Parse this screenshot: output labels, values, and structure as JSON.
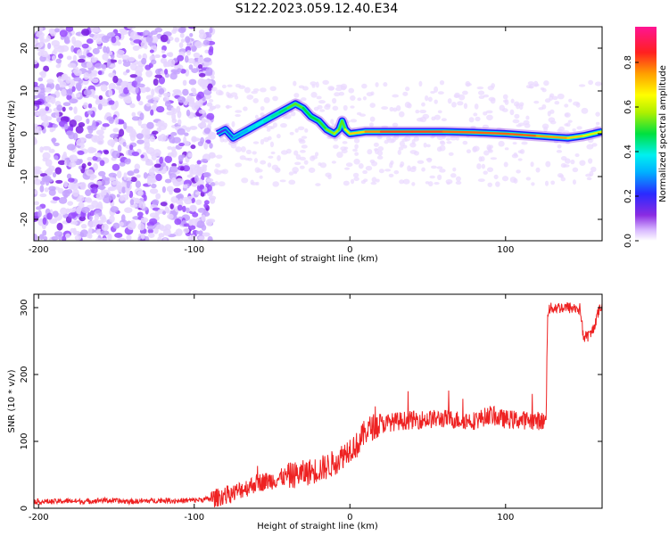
{
  "title": "S122.2023.059.12.40.E34",
  "colors": {
    "snr_line": "#ee2222",
    "spectrogram_scatter": "#7a1fe0",
    "spectrogram_ridge": "#ff2020",
    "background": "#ffffff"
  },
  "chart_data": [
    {
      "type": "heatmap",
      "xlabel": "Height of straight line (km)",
      "ylabel": "Frequency (Hz)",
      "xlim": [
        -203,
        162
      ],
      "ylim": [
        -25,
        25
      ],
      "xticks": [
        -200,
        -100,
        0,
        100
      ],
      "xtick_labels": [
        "-200",
        "-100",
        "0",
        "100"
      ],
      "yticks": [
        -20,
        -10,
        0,
        10,
        20
      ],
      "ytick_labels": [
        "-20",
        "-10",
        "0",
        "10",
        "20"
      ],
      "grid": false,
      "colorbar": {
        "label": "Normalized spectral amplitude",
        "range": [
          0,
          0.96
        ],
        "ticks": [
          0.0,
          0.2,
          0.4,
          0.6,
          0.8
        ],
        "tick_labels": [
          "0.0",
          "0.2",
          "0.4",
          "0.6",
          "0.8"
        ],
        "colormap": "rainbow-white-low"
      },
      "noise_region_x": [
        -203,
        -88
      ],
      "ridge": {
        "x": [
          -85,
          -80,
          -75,
          -70,
          -65,
          -60,
          -55,
          -50,
          -45,
          -40,
          -35,
          -30,
          -25,
          -20,
          -15,
          -10,
          -7,
          -5,
          -3,
          0,
          10,
          20,
          40,
          60,
          80,
          100,
          120,
          140,
          150,
          162
        ],
        "y": [
          0,
          1,
          -1,
          0,
          1,
          2,
          3,
          4,
          5,
          6,
          7,
          6,
          4,
          3,
          1,
          0,
          1,
          3,
          1,
          0,
          0.5,
          0.5,
          0.5,
          0.5,
          0.3,
          0,
          -0.5,
          -1,
          -0.5,
          0.5
        ],
        "amplitude": [
          0.15,
          0.2,
          0.3,
          0.3,
          0.35,
          0.4,
          0.4,
          0.45,
          0.45,
          0.5,
          0.6,
          0.5,
          0.5,
          0.5,
          0.55,
          0.6,
          0.6,
          0.5,
          0.6,
          0.7,
          0.75,
          0.85,
          0.85,
          0.85,
          0.8,
          0.85,
          0.8,
          0.75,
          0.7,
          0.6
        ]
      }
    },
    {
      "type": "line",
      "xlabel": "Height of straight line (km)",
      "ylabel": "SNR (10 * v/v)",
      "xlim": [
        -203,
        162
      ],
      "ylim": [
        0,
        320
      ],
      "xticks": [
        -200,
        -100,
        0,
        100
      ],
      "xtick_labels": [
        "-200",
        "-100",
        "0",
        "100"
      ],
      "yticks": [
        0,
        100,
        200,
        300
      ],
      "ytick_labels": [
        "0",
        "100",
        "200",
        "300"
      ],
      "grid": false,
      "series": [
        {
          "x": [
            -203,
            -190,
            -180,
            -170,
            -160,
            -150,
            -140,
            -130,
            -120,
            -110,
            -100,
            -90,
            -85,
            -80,
            -75,
            -70,
            -65,
            -60,
            -55,
            -50,
            -45,
            -40,
            -35,
            -30,
            -25,
            -20,
            -15,
            -10,
            -5,
            0,
            5,
            10,
            15,
            20,
            25,
            30,
            40,
            50,
            60,
            70,
            80,
            85,
            90,
            95,
            100,
            110,
            120,
            126,
            127,
            130,
            140,
            148,
            150,
            155,
            160,
            162
          ],
          "y": [
            10,
            10,
            11,
            10,
            12,
            11,
            10,
            11,
            12,
            11,
            12,
            14,
            16,
            20,
            22,
            28,
            32,
            38,
            40,
            42,
            45,
            48,
            50,
            52,
            55,
            58,
            62,
            68,
            78,
            90,
            95,
            115,
            122,
            125,
            128,
            130,
            132,
            133,
            134,
            132,
            131,
            135,
            140,
            135,
            133,
            132,
            131,
            130,
            295,
            300,
            300,
            298,
            255,
            260,
            295,
            305
          ]
        }
      ]
    }
  ]
}
